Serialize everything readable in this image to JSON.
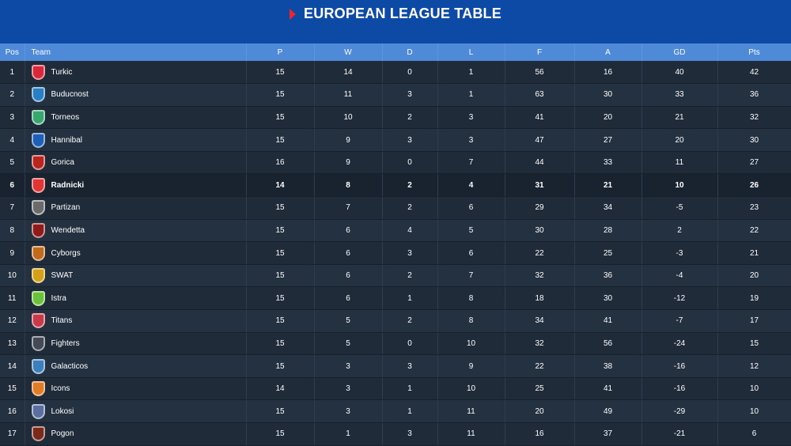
{
  "header": {
    "title": "EUROPEAN LEAGUE TABLE"
  },
  "columns": {
    "pos": "Pos",
    "team": "Team",
    "p": "P",
    "w": "W",
    "d": "D",
    "l": "L",
    "f": "F",
    "a": "A",
    "gd": "GD",
    "pts": "Pts"
  },
  "rows": [
    {
      "pos": "1",
      "team": "Turkic",
      "p": "15",
      "w": "14",
      "d": "0",
      "l": "1",
      "f": "56",
      "a": "16",
      "gd": "40",
      "pts": "42",
      "crest": "#d8283a"
    },
    {
      "pos": "2",
      "team": "Buducnost",
      "p": "15",
      "w": "11",
      "d": "3",
      "l": "1",
      "f": "63",
      "a": "30",
      "gd": "33",
      "pts": "36",
      "crest": "#2a7ec4"
    },
    {
      "pos": "3",
      "team": "Torneos",
      "p": "15",
      "w": "10",
      "d": "2",
      "l": "3",
      "f": "41",
      "a": "20",
      "gd": "21",
      "pts": "32",
      "crest": "#3aa66f"
    },
    {
      "pos": "4",
      "team": "Hannibal",
      "p": "15",
      "w": "9",
      "d": "3",
      "l": "3",
      "f": "47",
      "a": "27",
      "gd": "20",
      "pts": "30",
      "crest": "#1f5fb5"
    },
    {
      "pos": "5",
      "team": "Gorica",
      "p": "16",
      "w": "9",
      "d": "0",
      "l": "7",
      "f": "44",
      "a": "33",
      "gd": "11",
      "pts": "27",
      "crest": "#b8251f"
    },
    {
      "pos": "6",
      "team": "Radnicki",
      "p": "14",
      "w": "8",
      "d": "2",
      "l": "4",
      "f": "31",
      "a": "21",
      "gd": "10",
      "pts": "26",
      "crest": "#e13434"
    },
    {
      "pos": "7",
      "team": "Partizan",
      "p": "15",
      "w": "7",
      "d": "2",
      "l": "6",
      "f": "29",
      "a": "34",
      "gd": "-5",
      "pts": "23",
      "crest": "#6b6b6b"
    },
    {
      "pos": "8",
      "team": "Wendetta",
      "p": "15",
      "w": "6",
      "d": "4",
      "l": "5",
      "f": "30",
      "a": "28",
      "gd": "2",
      "pts": "22",
      "crest": "#8e1a1a"
    },
    {
      "pos": "9",
      "team": "Cyborgs",
      "p": "15",
      "w": "6",
      "d": "3",
      "l": "6",
      "f": "22",
      "a": "25",
      "gd": "-3",
      "pts": "21",
      "crest": "#c06a1e"
    },
    {
      "pos": "10",
      "team": "SWAT",
      "p": "15",
      "w": "6",
      "d": "2",
      "l": "7",
      "f": "32",
      "a": "36",
      "gd": "-4",
      "pts": "20",
      "crest": "#d4a017"
    },
    {
      "pos": "11",
      "team": "Istra",
      "p": "15",
      "w": "6",
      "d": "1",
      "l": "8",
      "f": "18",
      "a": "30",
      "gd": "-12",
      "pts": "19",
      "crest": "#6cc13a"
    },
    {
      "pos": "12",
      "team": "Titans",
      "p": "15",
      "w": "5",
      "d": "2",
      "l": "8",
      "f": "34",
      "a": "41",
      "gd": "-7",
      "pts": "17",
      "crest": "#c83a4a"
    },
    {
      "pos": "13",
      "team": "Fighters",
      "p": "15",
      "w": "5",
      "d": "0",
      "l": "10",
      "f": "32",
      "a": "56",
      "gd": "-24",
      "pts": "15",
      "crest": "#444a55"
    },
    {
      "pos": "14",
      "team": "Galacticos",
      "p": "15",
      "w": "3",
      "d": "3",
      "l": "9",
      "f": "22",
      "a": "38",
      "gd": "-16",
      "pts": "12",
      "crest": "#3d7fbd"
    },
    {
      "pos": "15",
      "team": "Icons",
      "p": "14",
      "w": "3",
      "d": "1",
      "l": "10",
      "f": "25",
      "a": "41",
      "gd": "-16",
      "pts": "10",
      "crest": "#e07b26"
    },
    {
      "pos": "16",
      "team": "Lokosi",
      "p": "15",
      "w": "3",
      "d": "1",
      "l": "11",
      "f": "20",
      "a": "49",
      "gd": "-29",
      "pts": "10",
      "crest": "#5a6fa0"
    },
    {
      "pos": "17",
      "team": "Pogon",
      "p": "15",
      "w": "1",
      "d": "3",
      "l": "11",
      "f": "16",
      "a": "37",
      "gd": "-21",
      "pts": "6",
      "crest": "#7a2a1a"
    }
  ],
  "highlight_row": "6",
  "colors": {
    "header_bg": "#0d4aa6",
    "column_header_bg": "#4f8ad9",
    "table_bg": "#1e2a38",
    "arrow": "#e8262d"
  }
}
